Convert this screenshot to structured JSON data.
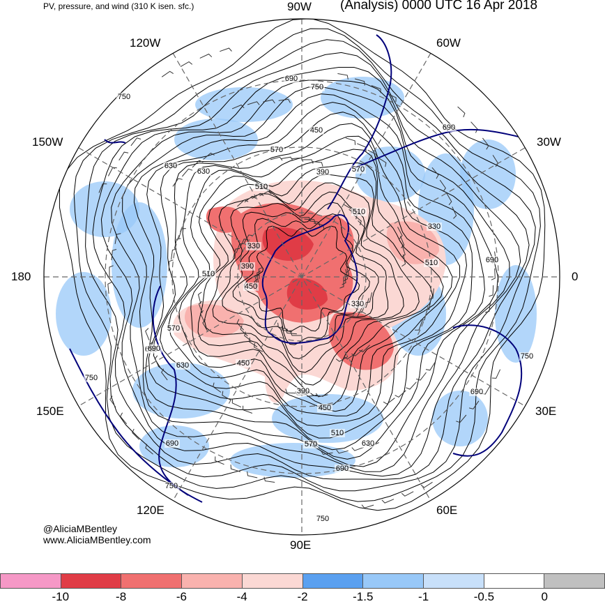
{
  "header": {
    "title_left": "PV, pressure, and wind (310 K isen. sfc.)",
    "title_right": "(Analysis) 0000 UTC 16 Apr 2018"
  },
  "longitude_labels": {
    "n90w": "90W",
    "n60w": "60W",
    "n120w": "120W",
    "n150w": "150W",
    "n30w": "30W",
    "n180": "180",
    "n0": "0",
    "n150e": "150E",
    "n30e": "30E",
    "n120e": "120E",
    "n60e": "60E",
    "n90e": "90E"
  },
  "contour_labels": [
    "750",
    "690",
    "750",
    "690",
    "750",
    "450",
    "570",
    "390",
    "630",
    "570",
    "630",
    "690",
    "510",
    "510",
    "330",
    "330",
    "690",
    "390",
    "510",
    "450",
    "330",
    "510",
    "690",
    "750",
    "630",
    "570",
    "450",
    "390",
    "510",
    "690",
    "450",
    "570",
    "630",
    "690",
    "750",
    "690",
    "750"
  ],
  "credits": {
    "handle": "@AliciaMBentley",
    "website": "www.AliciaMBentley.com"
  },
  "colorbar": {
    "colors": [
      "#f598c6",
      "#e03c46",
      "#f07070",
      "#f9b2ae",
      "#fbd8d4",
      "#5aa0f0",
      "#98c8f8",
      "#c8e0fa",
      "#ffffff",
      "#c0c0c0"
    ],
    "ticks": [
      "-10",
      "-8",
      "-6",
      "-4",
      "-2",
      "-1.5",
      "-1",
      "-0.5",
      "0"
    ]
  },
  "map_colors": {
    "contour": "#000000",
    "coastline": "#00007a",
    "graticule": "#666666",
    "pv_negative_strong": "#e03c46",
    "pv_negative_light": "#f9b2ae",
    "pv_low": "#98c8f8"
  }
}
